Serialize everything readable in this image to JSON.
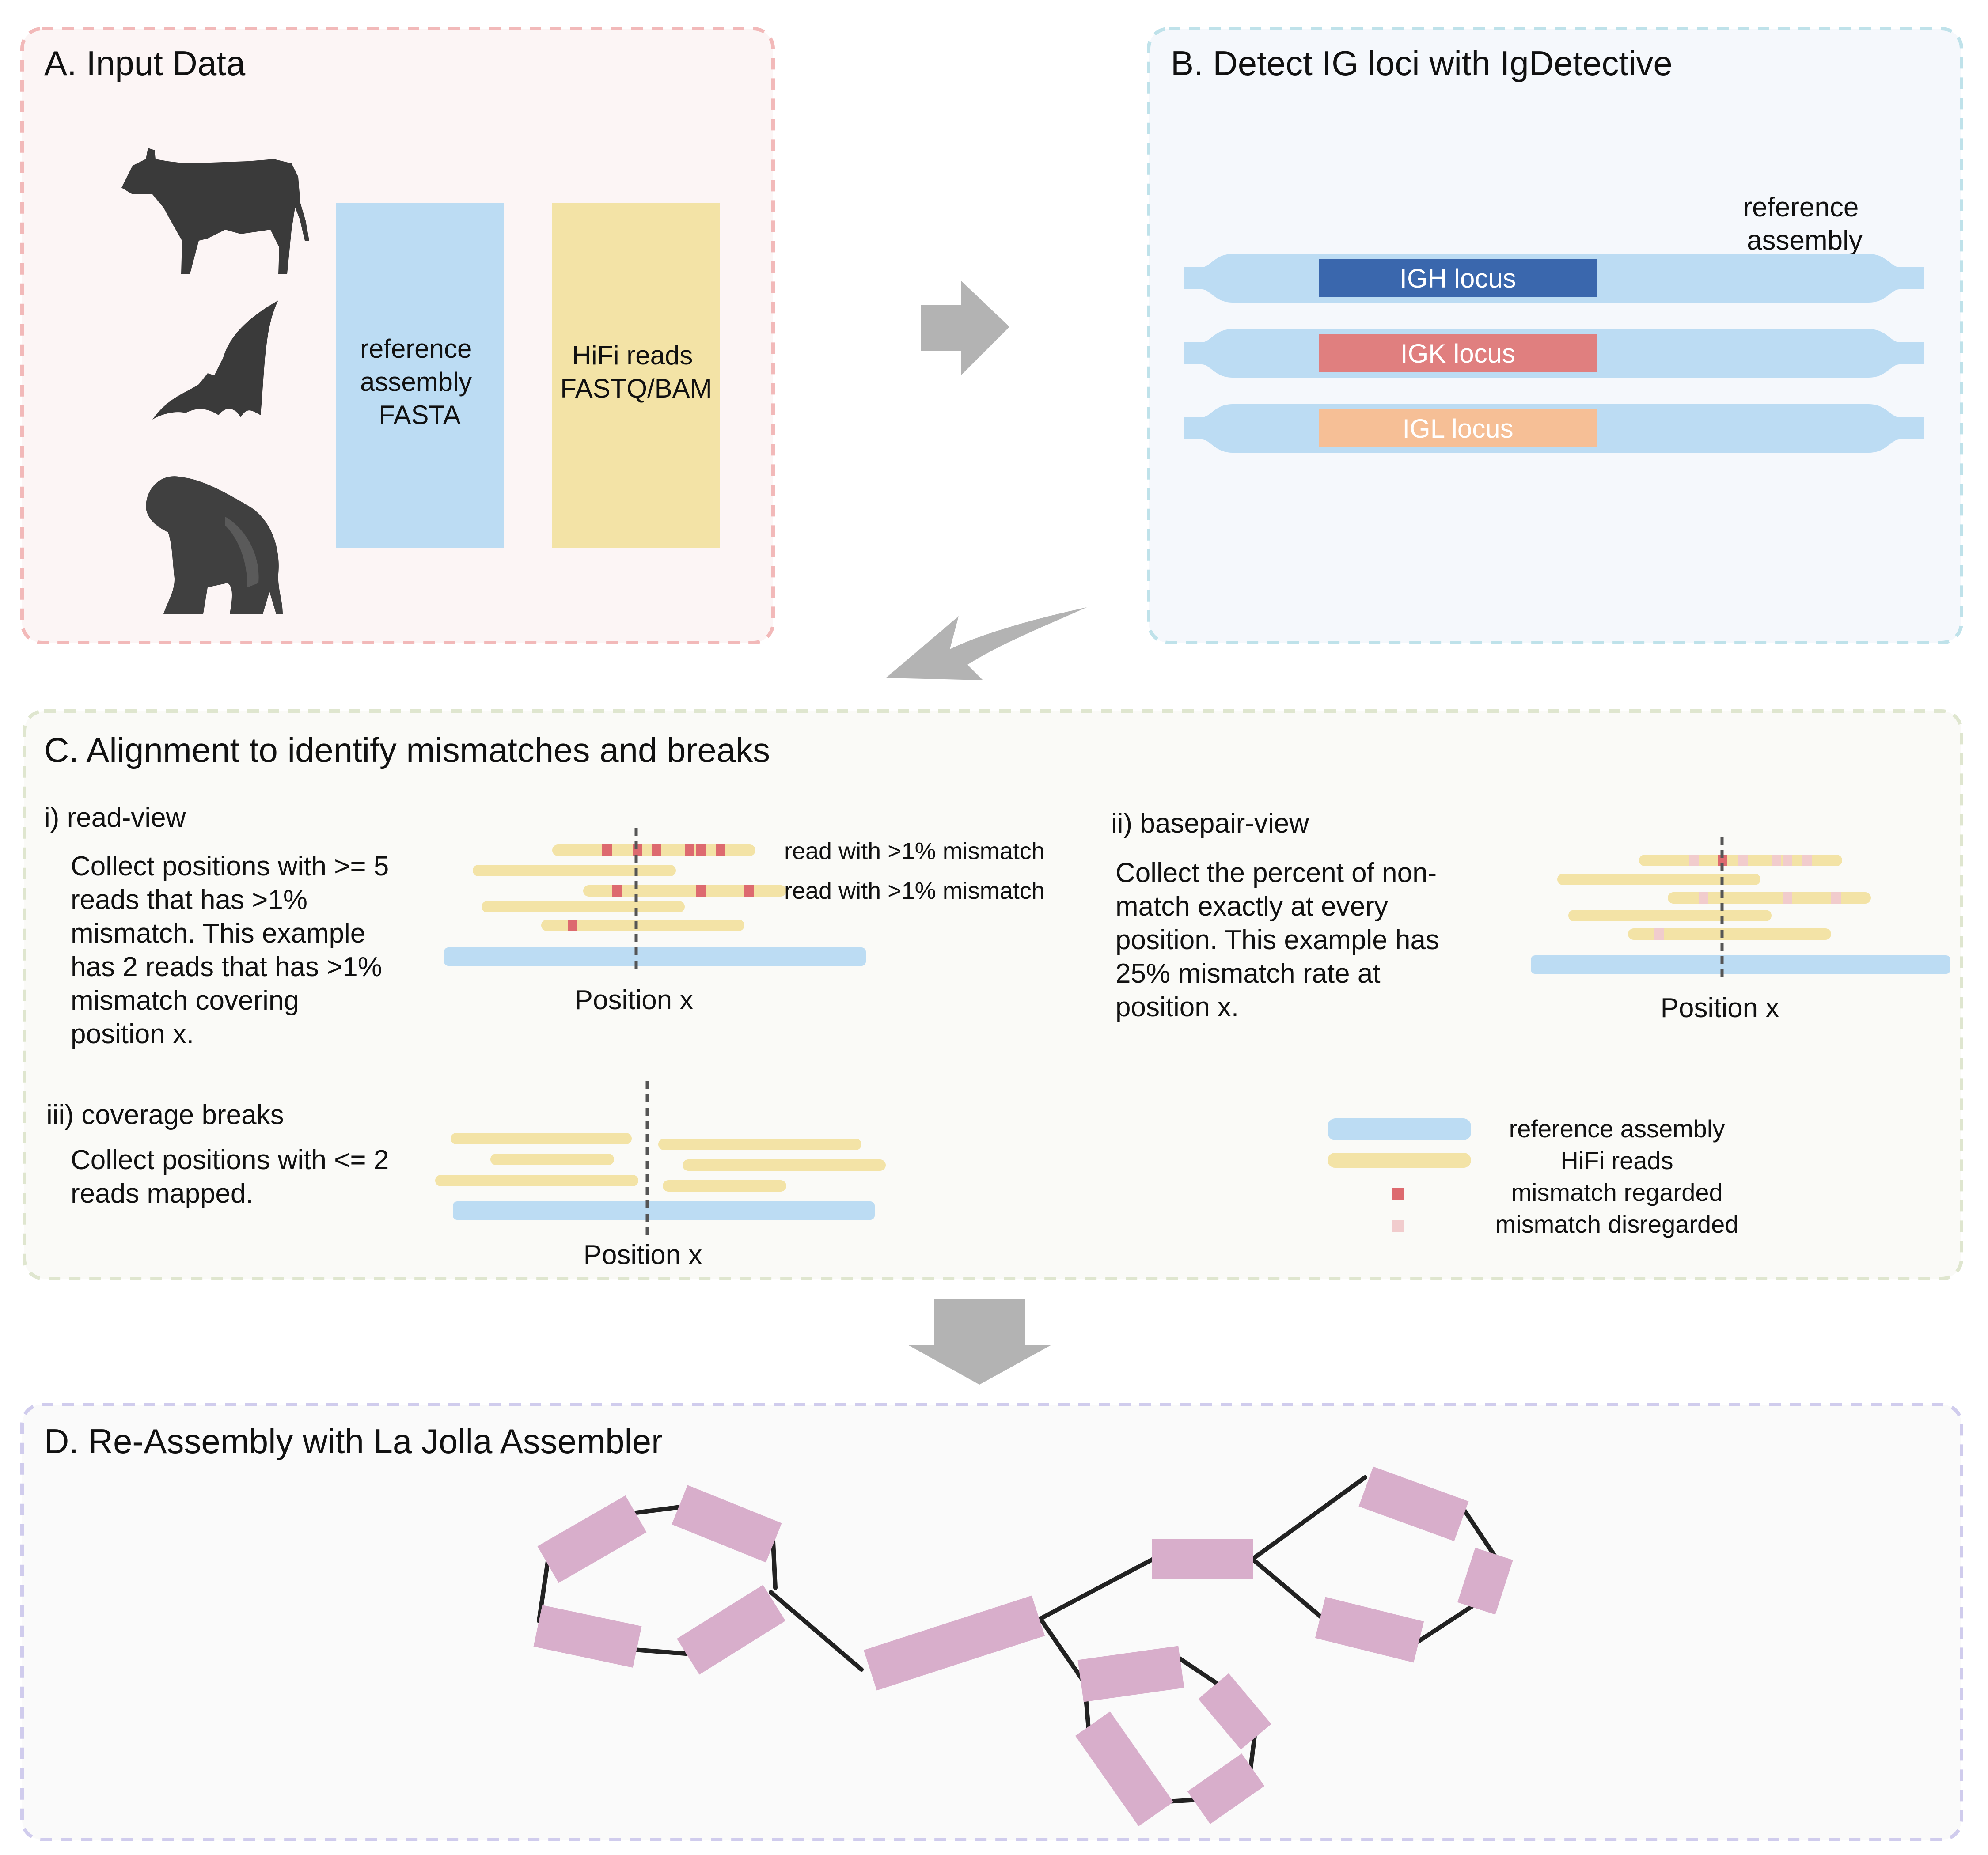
{
  "panel_a": {
    "title": "A. Input Data",
    "reference_box": [
      "reference",
      "assembly",
      "FASTA"
    ],
    "reads_box": [
      "HiFi reads",
      "FASTQ/BAM"
    ],
    "animals": [
      "cow-icon",
      "bat-icon",
      "gorilla-icon"
    ]
  },
  "panel_b": {
    "title": "B. Detect IG loci with IgDetective",
    "ref_label": [
      "reference",
      "assembly"
    ],
    "loci": [
      {
        "label": "IGH locus",
        "color": "#3a67ad",
        "text_color": "#ffffff"
      },
      {
        "label": "IGK locus",
        "color": "#e07f7f",
        "text_color": "#ffffff"
      },
      {
        "label": "IGL locus",
        "color": "#f6bf96",
        "text_color": "#ffffff"
      }
    ]
  },
  "panel_c": {
    "title": "C. Alignment to identify mismatches and breaks",
    "read_view": {
      "heading": "i) read-view",
      "desc": [
        "Collect positions with >= 5",
        "reads that has >1%",
        "mismatch. This  example",
        "has 2 reads that has >1%",
        "mismatch covering",
        "position x."
      ],
      "annotations": [
        "read with >1% mismatch",
        "read with >1% mismatch"
      ],
      "position_label": "Position x"
    },
    "basepair_view": {
      "heading": "ii) basepair-view",
      "desc": [
        "Collect the percent of non-",
        "match exactly at every",
        "position. This example has",
        "25% mismatch rate at",
        "position x."
      ],
      "position_label": "Position x"
    },
    "coverage_breaks": {
      "heading": "iii) coverage breaks",
      "desc": [
        "Collect positions with <= 2",
        "reads mapped."
      ],
      "position_label": "Position x"
    },
    "legend": [
      {
        "label": "reference assembly",
        "swatch": "bar",
        "color": "#bcdcf3"
      },
      {
        "label": "HiFi reads",
        "swatch": "bar",
        "color": "#f3e3a6"
      },
      {
        "label": "mismatch regarded",
        "swatch": "dot",
        "color": "#dd6a6f"
      },
      {
        "label": "mismatch disregarded",
        "swatch": "dot",
        "color": "#f1cccd"
      }
    ]
  },
  "panel_d": {
    "title": "D. Re-Assembly with La Jolla Assembler"
  },
  "colors": {
    "reference": "#bcdcf3",
    "reads": "#f3e3a6",
    "mismatch_regarded": "#dd6a6f",
    "mismatch_disregarded": "#f1cccd",
    "contig": "#d8aecb",
    "arrow": "#b3b3b3",
    "panel_a_border": "#f2b9b9",
    "panel_a_fill": "#fcf5f5",
    "panel_b_border": "#bfe2ea",
    "panel_b_fill": "#f5f8fc",
    "panel_c_border": "#dfe6cf",
    "panel_c_fill": "#fafaf7",
    "panel_d_border": "#d0cced",
    "panel_d_fill": "#fafafa"
  }
}
